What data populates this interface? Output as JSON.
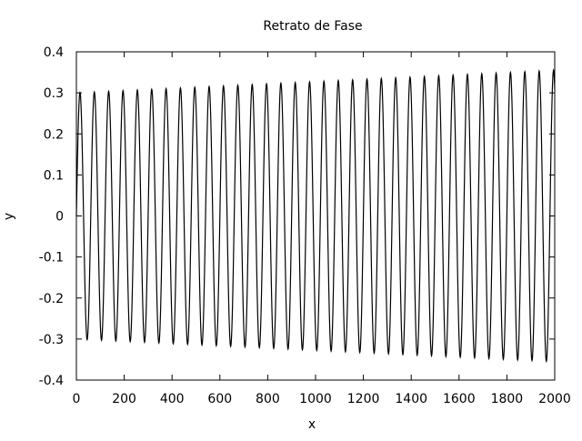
{
  "chart_data": {
    "type": "line",
    "title": "Retrato de Fase",
    "xlabel": "x",
    "ylabel": "y",
    "xlim": [
      0,
      2000
    ],
    "ylim": [
      -0.4,
      0.4
    ],
    "x_ticks": [
      0,
      200,
      400,
      600,
      800,
      1000,
      1200,
      1400,
      1600,
      1800,
      2000
    ],
    "y_ticks": [
      -0.4,
      -0.3,
      -0.2,
      -0.1,
      0,
      0.1,
      0.2,
      0.3,
      0.4
    ],
    "x_tick_labels": [
      "0",
      "200",
      "400",
      "600",
      "800",
      "1000",
      "1200",
      "1400",
      "1600",
      "1800",
      "2000"
    ],
    "y_tick_labels": [
      "-0.4",
      "-0.3",
      "-0.2",
      "-0.1",
      "0",
      "0.1",
      "0.2",
      "0.3",
      "0.4"
    ],
    "grid": false,
    "legend": "none",
    "line_color": "#000000",
    "series": [
      {
        "x_start": 0,
        "x_end": 2000,
        "sample_step": 1,
        "oscillation_period": 60,
        "amplitude_start": 0.3,
        "amplitude_end": 0.355,
        "y_center": 0
      }
    ]
  }
}
